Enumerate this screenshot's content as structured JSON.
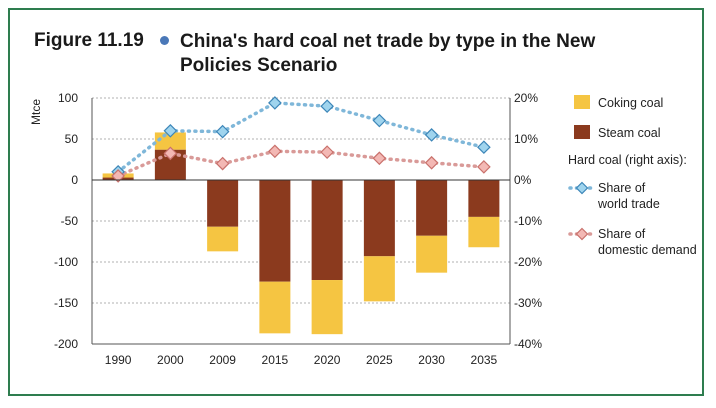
{
  "figure": {
    "number": "Figure 11.19",
    "title": "China's hard coal net trade by type in the New Policies Scenario"
  },
  "colors": {
    "coking": "#f5c542",
    "steam": "#8b3a1e",
    "world_trade": "#7fb7d9",
    "world_trade_marker": "#9fd4ee",
    "domestic": "#d99a98",
    "domestic_marker": "#f3b8b4",
    "frame": "#2e7d4f",
    "grid": "#b0b0b0"
  },
  "chart_data": {
    "type": "bar",
    "stacked": true,
    "categories": [
      "1990",
      "2000",
      "2009",
      "2015",
      "2020",
      "2025",
      "2030",
      "2035"
    ],
    "ylabel": "Mtce",
    "ylim": [
      -200,
      100
    ],
    "yticks": [
      100,
      50,
      0,
      -50,
      -100,
      -150,
      -200
    ],
    "y2lim": [
      -0.4,
      0.2
    ],
    "y2ticks": [
      "20%",
      "10%",
      "0%",
      "-10%",
      "-20%",
      "-30%",
      "-40%"
    ],
    "y2tick_values": [
      0.2,
      0.1,
      0,
      -0.1,
      -0.2,
      -0.3,
      -0.4
    ],
    "grid": true,
    "series": [
      {
        "name": "Steam coal",
        "kind": "bar",
        "values": [
          3,
          37,
          -57,
          -124,
          -122,
          -93,
          -68,
          -45
        ]
      },
      {
        "name": "Coking coal",
        "kind": "bar",
        "values": [
          5,
          21,
          -30,
          -63,
          -66,
          -55,
          -45,
          -37
        ]
      },
      {
        "name": "Share of world trade",
        "kind": "line",
        "axis": "right",
        "values": [
          0.02,
          0.12,
          0.118,
          0.188,
          0.18,
          0.145,
          0.11,
          0.08
        ]
      },
      {
        "name": "Share of domestic demand",
        "kind": "line",
        "axis": "right",
        "values": [
          0.01,
          0.065,
          0.04,
          0.07,
          0.068,
          0.053,
          0.042,
          0.032
        ]
      }
    ],
    "legend": {
      "position": "right",
      "coking": "Coking coal",
      "steam": "Steam coal",
      "group_label": "Hard coal (right axis):",
      "world_trade_l1": "Share of",
      "world_trade_l2": "world trade",
      "domestic_l1": "Share of",
      "domestic_l2": "domestic demand"
    }
  }
}
